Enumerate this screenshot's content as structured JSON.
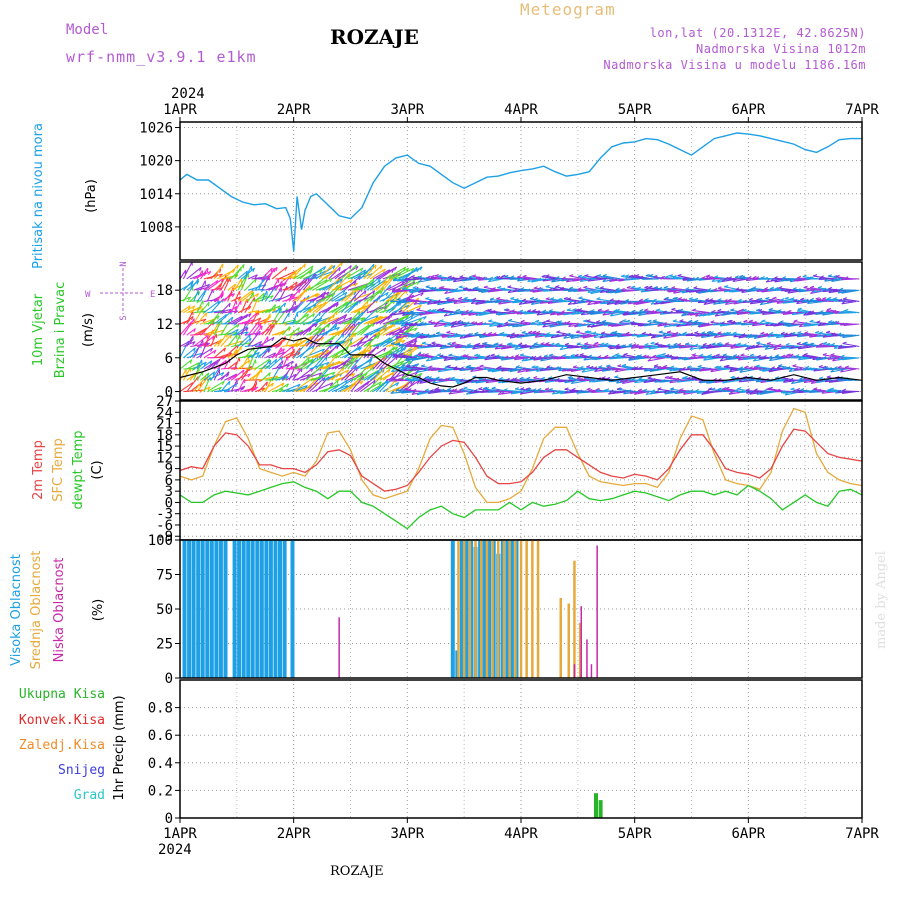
{
  "header": {
    "model_label": "Model",
    "model_name": "wrf-nmm_v3.9.1 e1km",
    "station": "ROZAJE",
    "meteogram": "Meteogram",
    "lonlat": "lon,lat (20.1312E, 42.8625N)",
    "elevation": "Nadmorska Visina 1012m",
    "model_elevation": "Nadmorska Visina u modelu 1186.16m",
    "footer_station": "ROZAJE",
    "watermark": "made by Angel"
  },
  "colors": {
    "pressure": "#1ea0e6",
    "temp2m": "#e64646",
    "sfc": "#e6aa3c",
    "dewpt": "#28c828",
    "high_cloud": "#1ea0e6",
    "mid_cloud": "#e6aa3c",
    "low_cloud": "#c828aa",
    "title_purple": "#b45ad2",
    "meteogram_orange": "#e6be78",
    "total_precip": "#28b428",
    "convective": "#e62828",
    "freezing": "#f08c28",
    "snow": "#3c3cdc",
    "graupel": "#28c8c8"
  },
  "chart_data": [
    {
      "type": "line",
      "title": "",
      "ylabel": "(hPa)",
      "side_label": "Pritisak na nivou mora",
      "ylim": [
        1002,
        1027
      ],
      "yticks": [
        1008,
        1014,
        1020,
        1026
      ],
      "x_start_year": "2024",
      "xticks": [
        "1APR",
        "2APR",
        "3APR",
        "4APR",
        "5APR",
        "6APR",
        "7APR"
      ],
      "grid": true,
      "series": [
        {
          "name": "",
          "x": [
            0,
            0.06,
            0.15,
            0.25,
            0.35,
            0.45,
            0.55,
            0.65,
            0.75,
            0.85,
            0.93,
            0.97,
            1.0,
            1.03,
            1.07,
            1.1,
            1.15,
            1.2,
            1.3,
            1.4,
            1.5,
            1.6,
            1.7,
            1.8,
            1.9,
            2.0,
            2.1,
            2.2,
            2.3,
            2.4,
            2.5,
            2.6,
            2.7,
            2.8,
            2.9,
            3.0,
            3.1,
            3.2,
            3.3,
            3.4,
            3.5,
            3.6,
            3.7,
            3.8,
            3.9,
            4.0,
            4.1,
            4.2,
            4.3,
            4.4,
            4.5,
            4.6,
            4.7,
            4.8,
            4.9,
            5.0,
            5.1,
            5.2,
            5.3,
            5.4,
            5.5,
            5.6,
            5.7,
            5.8,
            5.9,
            6.0
          ],
          "y": [
            1016.5,
            1017.5,
            1016.5,
            1016.5,
            1015.0,
            1013.5,
            1012.5,
            1012.0,
            1012.2,
            1011.3,
            1011.5,
            1009.5,
            1003.5,
            1013.5,
            1007.5,
            1011.0,
            1013.5,
            1014.0,
            1012.0,
            1010.0,
            1009.5,
            1011.5,
            1016.0,
            1019.0,
            1020.5,
            1021.0,
            1019.5,
            1019.0,
            1017.5,
            1016.0,
            1015.0,
            1016.0,
            1017.0,
            1017.2,
            1017.8,
            1018.2,
            1018.5,
            1019.0,
            1018.0,
            1017.2,
            1017.5,
            1018.0,
            1020.5,
            1022.5,
            1023.2,
            1023.4,
            1024.0,
            1023.8,
            1023.0,
            1022.0,
            1021.0,
            1022.5,
            1024.0,
            1024.5,
            1025.0,
            1024.8,
            1024.5,
            1024.0,
            1023.5,
            1023.0,
            1022.0,
            1021.5,
            1022.5,
            1023.8,
            1024.0,
            1024.0
          ]
        }
      ]
    },
    {
      "type": "line",
      "title": "",
      "ylabel": "(m/s)",
      "side_label_1": "10m Vjetar",
      "side_label_2": "Brzina i Pravac",
      "compass": {
        "n": "N",
        "s": "S",
        "e": "E",
        "w": "W"
      },
      "ylim": [
        -1.5,
        23
      ],
      "yticks": [
        0,
        6,
        12,
        18
      ],
      "grid": true,
      "series": [
        {
          "name": "",
          "x": [
            0,
            0.2,
            0.4,
            0.5,
            0.6,
            0.8,
            0.9,
            1.0,
            1.1,
            1.2,
            1.3,
            1.4,
            1.5,
            1.6,
            1.7,
            1.8,
            1.9,
            2.0,
            2.1,
            2.2,
            2.3,
            2.4,
            2.5,
            2.6,
            2.7,
            2.8,
            3.0,
            3.2,
            3.4,
            3.6,
            3.8,
            4.0,
            4.2,
            4.4,
            4.6,
            4.8,
            5.0,
            5.2,
            5.4,
            5.6,
            5.8,
            6.0
          ],
          "y": [
            2.5,
            3.5,
            5.0,
            6.5,
            7.5,
            8.0,
            9.5,
            9.0,
            9.5,
            8.5,
            8.5,
            8.5,
            6.5,
            6.5,
            6.5,
            5.0,
            4.0,
            3.0,
            2.5,
            1.5,
            1.0,
            0.8,
            1.5,
            2.5,
            2.5,
            2.0,
            1.5,
            2.0,
            3.0,
            2.5,
            2.0,
            2.5,
            3.0,
            3.5,
            2.0,
            2.0,
            2.5,
            2.0,
            3.0,
            2.0,
            2.5,
            2.0
          ]
        }
      ],
      "arrow_rows_y": [
        0,
        2,
        4,
        6,
        8,
        10,
        12,
        14,
        16,
        18,
        20
      ],
      "arrow_segments": [
        {
          "x_from": 0,
          "x_to": 1.0,
          "colors": [
            "#ff3c3c",
            "#ffb400",
            "#50dc32",
            "#1ea0e6",
            "#a032dc",
            "#ff28c8"
          ]
        },
        {
          "x_from": 1.0,
          "x_to": 2.0,
          "colors": [
            "#50dc32",
            "#1ea0e6",
            "#ffb400",
            "#a032dc"
          ]
        },
        {
          "x_from": 2.0,
          "x_to": 6.0,
          "colors": [
            "#1e8cdc",
            "#a032dc",
            "#1ea0e6",
            "#7832dc"
          ]
        }
      ]
    },
    {
      "type": "line",
      "title": "",
      "ylabel": "(C)",
      "side_label_1": "2m Temp",
      "side_label_2": "SFC Temp",
      "side_label_3": "dewpt Temp",
      "ylim": [
        -10,
        27
      ],
      "yticks": [
        -9,
        -6,
        -3,
        0,
        3,
        6,
        9,
        12,
        15,
        18,
        21,
        24,
        27
      ],
      "grid": true,
      "series": [
        {
          "name": "2m Temp",
          "x": [
            0,
            0.1,
            0.2,
            0.3,
            0.4,
            0.5,
            0.6,
            0.7,
            0.8,
            0.9,
            1.0,
            1.1,
            1.2,
            1.3,
            1.4,
            1.5,
            1.6,
            1.7,
            1.8,
            1.9,
            2.0,
            2.1,
            2.2,
            2.3,
            2.4,
            2.5,
            2.6,
            2.7,
            2.8,
            2.9,
            3.0,
            3.1,
            3.2,
            3.3,
            3.4,
            3.5,
            3.6,
            3.7,
            3.8,
            3.9,
            4.0,
            4.1,
            4.2,
            4.3,
            4.4,
            4.5,
            4.6,
            4.7,
            4.8,
            4.9,
            5.0,
            5.1,
            5.2,
            5.3,
            5.4,
            5.5,
            5.6,
            5.7,
            5.8,
            5.9,
            6.0
          ],
          "y": [
            8.5,
            9.5,
            9.0,
            15.0,
            18.5,
            18.0,
            15.0,
            10.0,
            10.0,
            9.0,
            9.0,
            8.0,
            10.0,
            13.5,
            14.0,
            12.5,
            7.0,
            5.0,
            3.0,
            3.5,
            4.5,
            8.0,
            12.0,
            15.0,
            16.5,
            16.0,
            12.0,
            7.0,
            5.0,
            5.0,
            5.5,
            8.0,
            12.0,
            14.0,
            14.0,
            12.0,
            10.0,
            8.0,
            7.0,
            6.5,
            7.5,
            7.0,
            6.0,
            9.0,
            14.0,
            18.0,
            18.0,
            14.0,
            9.0,
            8.0,
            7.5,
            6.5,
            9.0,
            15.0,
            19.5,
            19.0,
            16.0,
            13.0,
            12.0,
            11.5,
            11.0
          ]
        },
        {
          "name": "SFC Temp",
          "x": [
            0,
            0.1,
            0.2,
            0.3,
            0.4,
            0.5,
            0.6,
            0.7,
            0.8,
            0.9,
            1.0,
            1.1,
            1.2,
            1.3,
            1.4,
            1.5,
            1.6,
            1.7,
            1.8,
            1.9,
            2.0,
            2.1,
            2.2,
            2.3,
            2.4,
            2.5,
            2.6,
            2.7,
            2.8,
            2.9,
            3.0,
            3.1,
            3.2,
            3.3,
            3.4,
            3.5,
            3.6,
            3.7,
            3.8,
            3.9,
            4.0,
            4.1,
            4.2,
            4.3,
            4.4,
            4.5,
            4.6,
            4.7,
            4.8,
            4.9,
            5.0,
            5.1,
            5.2,
            5.3,
            5.4,
            5.5,
            5.6,
            5.7,
            5.8,
            5.9,
            6.0
          ],
          "y": [
            7.0,
            6.0,
            7.0,
            15.0,
            21.5,
            22.5,
            17.0,
            9.0,
            8.0,
            7.0,
            8.0,
            7.0,
            11.0,
            18.5,
            19.0,
            14.0,
            6.0,
            2.0,
            1.0,
            2.0,
            3.0,
            9.0,
            17.0,
            20.5,
            20.0,
            13.0,
            4.0,
            0.0,
            0.0,
            1.0,
            3.0,
            9.0,
            17.0,
            20.0,
            20.0,
            13.0,
            7.0,
            5.5,
            5.0,
            4.5,
            5.0,
            5.0,
            4.0,
            8.0,
            17.0,
            23.0,
            22.0,
            13.0,
            6.0,
            5.0,
            4.5,
            3.5,
            8.0,
            19.0,
            25.0,
            24.0,
            13.0,
            8.0,
            6.0,
            5.0,
            4.5
          ]
        },
        {
          "name": "dewpt Temp",
          "x": [
            0,
            0.1,
            0.2,
            0.3,
            0.4,
            0.5,
            0.6,
            0.7,
            0.8,
            0.9,
            1.0,
            1.1,
            1.2,
            1.3,
            1.4,
            1.5,
            1.6,
            1.7,
            1.8,
            1.9,
            2.0,
            2.1,
            2.2,
            2.3,
            2.4,
            2.5,
            2.6,
            2.7,
            2.8,
            2.9,
            3.0,
            3.1,
            3.2,
            3.3,
            3.4,
            3.5,
            3.6,
            3.7,
            3.8,
            3.9,
            4.0,
            4.1,
            4.2,
            4.3,
            4.4,
            4.5,
            4.6,
            4.7,
            4.8,
            4.9,
            5.0,
            5.1,
            5.2,
            5.3,
            5.4,
            5.5,
            5.6,
            5.7,
            5.8,
            5.9,
            6.0
          ],
          "y": [
            2.0,
            0.0,
            0.0,
            2.0,
            3.0,
            2.5,
            2.0,
            3.0,
            4.0,
            5.0,
            5.5,
            4.0,
            3.0,
            1.0,
            3.0,
            3.0,
            0.0,
            -1.0,
            -3.0,
            -5.0,
            -7.0,
            -4.0,
            -2.0,
            -1.0,
            -3.0,
            -4.0,
            -2.0,
            -2.0,
            -2.0,
            0.0,
            -2.0,
            0.0,
            -1.0,
            -0.5,
            0.5,
            3.0,
            1.0,
            0.5,
            1.0,
            2.0,
            3.0,
            2.5,
            1.5,
            0.5,
            2.0,
            3.0,
            3.0,
            2.0,
            3.0,
            2.0,
            4.5,
            3.0,
            1.0,
            -2.0,
            0.0,
            2.0,
            0.0,
            -1.0,
            3.0,
            3.5,
            2.0
          ]
        }
      ]
    },
    {
      "type": "bar",
      "title": "",
      "ylabel": "(%)",
      "side_label_1": "Visoka Oblacnost",
      "side_label_2": "Srednja Oblacnost",
      "side_label_3": "Niska Oblacnost",
      "ylim": [
        0,
        100
      ],
      "yticks": [
        0,
        25,
        50,
        75,
        100
      ],
      "grid": true,
      "series": [
        {
          "name": "Visoka Oblacnost",
          "x": [
            0.04,
            0.08,
            0.12,
            0.16,
            0.2,
            0.24,
            0.28,
            0.32,
            0.36,
            0.4,
            0.48,
            0.52,
            0.56,
            0.6,
            0.64,
            0.68,
            0.72,
            0.76,
            0.8,
            0.84,
            0.88,
            0.92,
            0.96,
            0.99,
            2.4,
            2.44,
            2.48,
            2.52,
            2.56,
            2.6,
            2.64,
            2.68,
            2.72,
            2.76,
            2.8,
            2.84,
            2.88,
            2.92,
            2.96,
            3.0
          ],
          "values": [
            100,
            100,
            100,
            100,
            100,
            100,
            100,
            100,
            100,
            100,
            100,
            100,
            100,
            100,
            100,
            100,
            100,
            100,
            100,
            100,
            100,
            100,
            8,
            100,
            100,
            20,
            100,
            100,
            100,
            95,
            100,
            100,
            100,
            100,
            90,
            100,
            100,
            100,
            100,
            5
          ]
        },
        {
          "name": "Srednja Oblacnost",
          "x": [
            2.45,
            2.5,
            2.55,
            2.6,
            2.65,
            2.7,
            2.75,
            2.8,
            2.85,
            2.9,
            2.95,
            3.0,
            3.05,
            3.1,
            3.15,
            3.35,
            3.42,
            3.47,
            3.52,
            3.57
          ],
          "values": [
            100,
            100,
            100,
            100,
            100,
            100,
            100,
            100,
            100,
            100,
            100,
            100,
            100,
            100,
            100,
            58,
            54,
            85,
            40,
            5
          ]
        },
        {
          "name": "Niska Oblacnost",
          "x": [
            1.22,
            1.4,
            1.5,
            3.47,
            3.53,
            3.58,
            3.62,
            3.67
          ],
          "values": [
            8,
            44,
            5,
            10,
            52,
            28,
            10,
            96
          ]
        }
      ]
    },
    {
      "type": "bar",
      "title": "",
      "ylabel": "1hr Precip (mm)",
      "ylim": [
        0,
        1.0
      ],
      "yticks": [
        0,
        0.2,
        0.4,
        0.6,
        0.8
      ],
      "grid": true,
      "legend": [
        "Ukupna Kisa",
        "Konvek.Kisa",
        "Zaledj.Kisa",
        "Snijeg",
        "Grad"
      ],
      "series": [
        {
          "name": "Ukupna Kisa",
          "x": [
            3.66,
            3.7
          ],
          "values": [
            0.18,
            0.13
          ]
        }
      ]
    }
  ]
}
